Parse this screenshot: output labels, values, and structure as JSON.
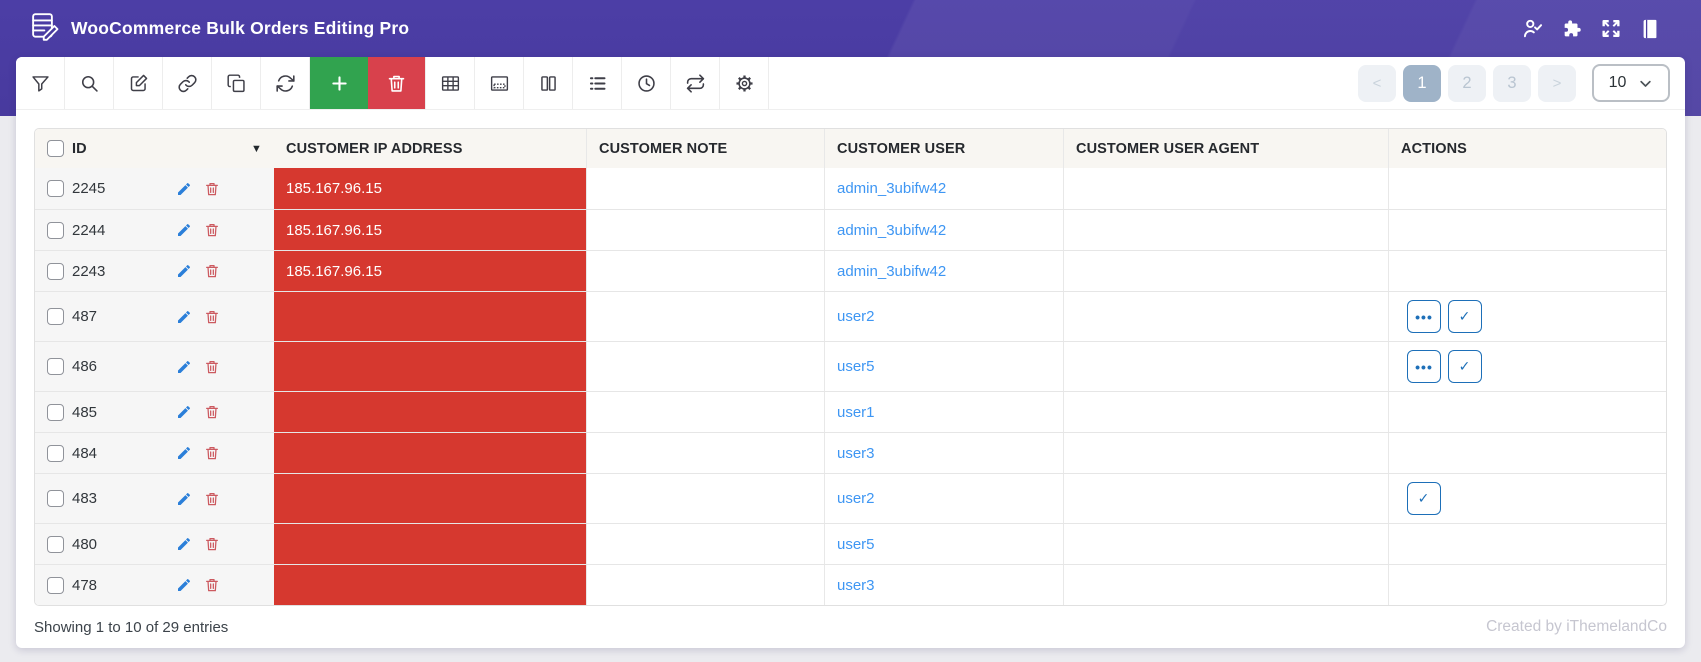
{
  "app": {
    "title": "WooCommerce Bulk Orders Editing Pro"
  },
  "header": {
    "icons": [
      "user-check-icon",
      "puzzle-icon",
      "fullscreen-icon",
      "book-icon"
    ]
  },
  "toolbar": {
    "buttons": [
      {
        "icon": "filter",
        "variant": "plain"
      },
      {
        "icon": "search",
        "variant": "plain"
      },
      {
        "icon": "edit",
        "variant": "plain"
      },
      {
        "icon": "link",
        "variant": "plain"
      },
      {
        "icon": "duplicate",
        "variant": "plain"
      },
      {
        "icon": "refresh",
        "variant": "plain"
      },
      {
        "icon": "add",
        "variant": "green"
      },
      {
        "icon": "delete",
        "variant": "red"
      },
      {
        "icon": "grid",
        "variant": "plain"
      },
      {
        "icon": "inline-edit",
        "variant": "plain"
      },
      {
        "icon": "columns",
        "variant": "plain"
      },
      {
        "icon": "list",
        "variant": "plain"
      },
      {
        "icon": "history",
        "variant": "plain"
      },
      {
        "icon": "sync",
        "variant": "plain"
      },
      {
        "icon": "settings",
        "variant": "plain"
      }
    ]
  },
  "pagination": {
    "prev_label": "<",
    "next_label": ">",
    "pages": [
      "1",
      "2",
      "3"
    ],
    "active_page": "1",
    "page_size": "10"
  },
  "table": {
    "columns": [
      "ID",
      "CUSTOMER IP ADDRESS",
      "CUSTOMER NOTE",
      "CUSTOMER USER",
      "CUSTOMER USER AGENT",
      "ACTIONS"
    ],
    "sort_caret": "▼",
    "action_labels": {
      "more": "•••",
      "check": "✓"
    },
    "rows": [
      {
        "id": "2245",
        "ip": "185.167.96.15",
        "note": "",
        "user": "admin_3ubifw42",
        "user_agent": "",
        "actions": []
      },
      {
        "id": "2244",
        "ip": "185.167.96.15",
        "note": "",
        "user": "admin_3ubifw42",
        "user_agent": "",
        "actions": []
      },
      {
        "id": "2243",
        "ip": "185.167.96.15",
        "note": "",
        "user": "admin_3ubifw42",
        "user_agent": "",
        "actions": []
      },
      {
        "id": "487",
        "ip": "",
        "note": "",
        "user": "user2",
        "user_agent": "",
        "actions": [
          "more",
          "check"
        ]
      },
      {
        "id": "486",
        "ip": "",
        "note": "",
        "user": "user5",
        "user_agent": "",
        "actions": [
          "more",
          "check"
        ]
      },
      {
        "id": "485",
        "ip": "",
        "note": "",
        "user": "user1",
        "user_agent": "",
        "actions": []
      },
      {
        "id": "484",
        "ip": "",
        "note": "",
        "user": "user3",
        "user_agent": "",
        "actions": []
      },
      {
        "id": "483",
        "ip": "",
        "note": "",
        "user": "user2",
        "user_agent": "",
        "actions": [
          "check"
        ]
      },
      {
        "id": "480",
        "ip": "",
        "note": "",
        "user": "user5",
        "user_agent": "",
        "actions": []
      },
      {
        "id": "478",
        "ip": "",
        "note": "",
        "user": "user3",
        "user_agent": "",
        "actions": []
      }
    ]
  },
  "footer": {
    "showing": "Showing 1 to 10 of 29 entries",
    "credit": "Created by iThemelandCo"
  },
  "colors": {
    "banner_purple": "#4b3da3",
    "toolbar_green": "#31a34f",
    "toolbar_red": "#d8414c",
    "ip_cell_red": "#d6382f",
    "link_blue": "#3e96f3",
    "action_blue": "#1d6fb8",
    "active_page": "#9fb3c8"
  }
}
